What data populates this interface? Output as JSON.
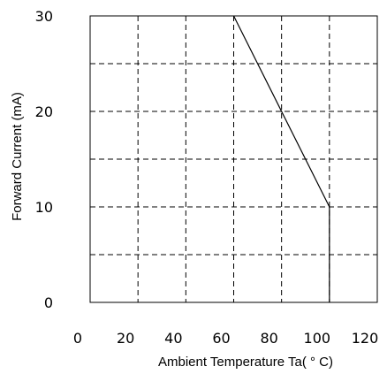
{
  "chart_data": {
    "type": "line",
    "title": "",
    "xlabel": "Ambient Temperature Ta( ° C)",
    "ylabel": "Forward Current (mA)",
    "xlim": [
      0,
      120
    ],
    "ylim": [
      0,
      30
    ],
    "x_ticks": [
      0,
      20,
      40,
      60,
      80,
      100,
      120
    ],
    "x_tick_labels": [
      "0",
      "20",
      "40",
      "60",
      "80",
      "100",
      "120"
    ],
    "y_ticks": [
      0,
      10,
      20,
      30
    ],
    "y_tick_labels": [
      "0",
      "10",
      "20",
      "30"
    ],
    "y_minor_grid": [
      5,
      15,
      25
    ],
    "grid": true,
    "grid_style": "dashed",
    "series": [
      {
        "x": [
          60,
          100,
          100
        ],
        "y": [
          30,
          10,
          0
        ]
      }
    ]
  }
}
